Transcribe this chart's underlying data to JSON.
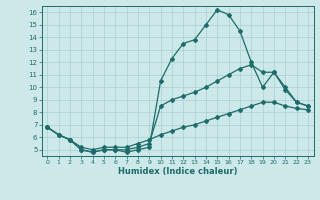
{
  "xlabel": "Humidex (Indice chaleur)",
  "xlim": [
    -0.5,
    23.5
  ],
  "ylim": [
    4.5,
    16.5
  ],
  "xticks": [
    0,
    1,
    2,
    3,
    4,
    5,
    6,
    7,
    8,
    9,
    10,
    11,
    12,
    13,
    14,
    15,
    16,
    17,
    18,
    19,
    20,
    21,
    22,
    23
  ],
  "yticks": [
    5,
    6,
    7,
    8,
    9,
    10,
    11,
    12,
    13,
    14,
    15,
    16
  ],
  "bg_color": "#cce8e8",
  "line_color": "#1e6b6b",
  "grid_color": "#aacfcf",
  "line1_x": [
    0,
    1,
    2,
    3,
    4,
    5,
    6,
    7,
    8,
    9,
    10,
    11,
    12,
    13,
    14,
    15,
    16,
    17,
    18,
    19,
    20,
    21,
    22,
    23
  ],
  "line1_y": [
    6.8,
    6.2,
    5.8,
    5.0,
    4.8,
    5.0,
    5.0,
    4.8,
    5.0,
    5.2,
    10.5,
    12.3,
    13.5,
    13.8,
    15.0,
    16.2,
    15.8,
    14.5,
    12.0,
    10.0,
    11.2,
    10.0,
    8.8,
    8.5
  ],
  "line2_x": [
    0,
    1,
    2,
    3,
    4,
    5,
    6,
    7,
    8,
    9,
    10,
    11,
    12,
    13,
    14,
    15,
    16,
    17,
    18,
    19,
    20,
    21,
    22,
    23
  ],
  "line2_y": [
    6.8,
    6.2,
    5.8,
    5.0,
    4.8,
    5.0,
    5.0,
    5.0,
    5.2,
    5.5,
    8.5,
    9.0,
    9.3,
    9.6,
    10.0,
    10.5,
    11.0,
    11.5,
    11.8,
    11.2,
    11.2,
    9.8,
    8.8,
    8.5
  ],
  "line3_x": [
    0,
    1,
    2,
    3,
    4,
    5,
    6,
    7,
    8,
    9,
    10,
    11,
    12,
    13,
    14,
    15,
    16,
    17,
    18,
    19,
    20,
    21,
    22,
    23
  ],
  "line3_y": [
    6.8,
    6.2,
    5.8,
    5.2,
    5.0,
    5.2,
    5.2,
    5.2,
    5.5,
    5.8,
    6.2,
    6.5,
    6.8,
    7.0,
    7.3,
    7.6,
    7.9,
    8.2,
    8.5,
    8.8,
    8.8,
    8.5,
    8.3,
    8.2
  ]
}
